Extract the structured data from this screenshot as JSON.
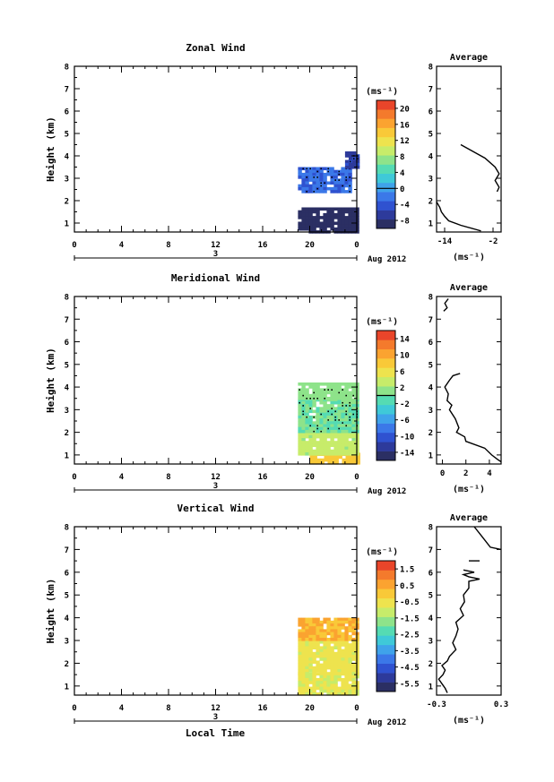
{
  "figure": {
    "date_label": "Aug 2012",
    "xlabel": "Local Time",
    "average_title": "Average",
    "unit_label": "(ms⁻¹)"
  },
  "chart_data": [
    {
      "type": "heatmap",
      "title": "Zonal Wind",
      "ylabel": "Height (km)",
      "xlabel": "Local Time",
      "x_ticks": [
        "0",
        "4",
        "8",
        "12",
        "16",
        "20",
        "0"
      ],
      "xlim": [
        0,
        24
      ],
      "ylim": [
        0.6,
        8
      ],
      "y_ticks": [
        "1",
        "2",
        "3",
        "4",
        "5",
        "6",
        "7",
        "8"
      ],
      "day_label": "3",
      "date_label": "Aug 2012",
      "colorbar": {
        "unit": "(ms⁻¹)",
        "ticks": [
          "20",
          "16",
          "12",
          "8",
          "4",
          "0",
          "-4",
          "-8"
        ],
        "range": [
          -10,
          22
        ]
      },
      "regions": [
        {
          "x": [
            19.0,
            24.0
          ],
          "y": [
            0.65,
            1.7
          ],
          "value": -9
        },
        {
          "x": [
            19.0,
            23.4
          ],
          "y": [
            2.4,
            3.5
          ],
          "value": -3
        },
        {
          "x": [
            23.0,
            24.0
          ],
          "y": [
            3.5,
            4.2
          ],
          "value": -6
        }
      ],
      "profile": {
        "title": "Average",
        "x_ticks": [
          "-14",
          "-2"
        ],
        "xlim": [
          -16,
          0
        ],
        "xlabel": "(ms⁻¹)",
        "segments": [
          {
            "height": [
              4.5,
              4.2,
              3.9,
              3.5,
              3.2,
              2.9,
              2.6,
              2.4
            ],
            "value": [
              -10,
              -7,
              -4,
              -1.5,
              -0.5,
              -1.5,
              -0.5,
              -1
            ]
          },
          {
            "height": [
              1.95,
              1.7,
              1.5,
              1.3,
              1.1,
              0.9,
              0.7,
              0.65
            ],
            "value": [
              -16,
              -15.2,
              -14.8,
              -14,
              -13,
              -10,
              -6,
              -5
            ]
          }
        ]
      }
    },
    {
      "type": "heatmap",
      "title": "Meridional Wind",
      "ylabel": "Height (km)",
      "xlabel": "Local Time",
      "x_ticks": [
        "0",
        "4",
        "8",
        "12",
        "16",
        "20",
        "0"
      ],
      "xlim": [
        0,
        24
      ],
      "ylim": [
        0.6,
        8
      ],
      "y_ticks": [
        "1",
        "2",
        "3",
        "4",
        "5",
        "6",
        "7",
        "8"
      ],
      "day_label": "3",
      "date_label": "Aug 2012",
      "colorbar": {
        "unit": "(ms⁻¹)",
        "ticks": [
          "14",
          "10",
          "6",
          "2",
          "-2",
          "-6",
          "-10",
          "-14"
        ],
        "range": [
          -16,
          16
        ]
      },
      "regions": [
        {
          "x": [
            20.0,
            24.0
          ],
          "y": [
            0.65,
            1.1
          ],
          "value": 8
        },
        {
          "x": [
            19.0,
            24.0
          ],
          "y": [
            1.1,
            2.0
          ],
          "value": 3
        },
        {
          "x": [
            19.0,
            24.0
          ],
          "y": [
            2.0,
            3.5
          ],
          "value": 0
        },
        {
          "x": [
            19.0,
            24.0
          ],
          "y": [
            3.5,
            4.2
          ],
          "value": 1
        }
      ],
      "profile": {
        "title": "Average",
        "x_ticks": [
          "0",
          "2",
          "4"
        ],
        "xlim": [
          -0.5,
          5
        ],
        "xlabel": "(ms⁻¹)",
        "segments": [
          {
            "height": [
              7.9,
              7.7,
              7.5,
              7.35
            ],
            "value": [
              0.5,
              0.2,
              0.4,
              0.1
            ]
          },
          {
            "height": [
              4.6,
              4.5,
              4.3,
              4.0,
              3.7,
              3.4,
              3.2,
              3.0,
              2.6,
              2.2,
              2.0,
              1.8,
              1.6,
              1.3,
              1.0,
              0.8,
              0.7
            ],
            "value": [
              1.5,
              0.9,
              0.6,
              0.2,
              0.5,
              0.4,
              0.8,
              0.6,
              1.1,
              1.4,
              1.2,
              1.9,
              2.0,
              3.6,
              4.2,
              4.7,
              5.0
            ]
          }
        ]
      }
    },
    {
      "type": "heatmap",
      "title": "Vertical Wind",
      "ylabel": "Height (km)",
      "xlabel": "Local Time",
      "x_ticks": [
        "0",
        "4",
        "8",
        "12",
        "16",
        "20",
        "0"
      ],
      "xlim": [
        0,
        24
      ],
      "ylim": [
        0.6,
        8
      ],
      "y_ticks": [
        "1",
        "2",
        "3",
        "4",
        "5",
        "6",
        "7",
        "8"
      ],
      "day_label": "3",
      "date_label": "Aug 2012",
      "colorbar": {
        "unit": "(ms⁻¹)",
        "ticks": [
          "1.5",
          "0.5",
          "-0.5",
          "-1.5",
          "-2.5",
          "-3.5",
          "-4.5",
          "-5.5"
        ],
        "range": [
          -6,
          2
        ]
      },
      "regions": [
        {
          "x": [
            19.0,
            24.0
          ],
          "y": [
            0.65,
            1.6
          ],
          "value": -0.8
        },
        {
          "x": [
            19.0,
            24.0
          ],
          "y": [
            1.6,
            3.0
          ],
          "value": -0.7
        },
        {
          "x": [
            19.0,
            24.0
          ],
          "y": [
            3.0,
            4.0
          ],
          "value": 0.3
        }
      ],
      "profile": {
        "title": "Average",
        "x_ticks": [
          "-0.3",
          "0.3"
        ],
        "xlim": [
          -0.3,
          0.3
        ],
        "xlabel": "(ms⁻¹)",
        "segments": [
          {
            "height": [
              8.0,
              7.7,
              7.4,
              7.1,
              7.0
            ],
            "value": [
              0.05,
              0.1,
              0.15,
              0.2,
              0.3
            ]
          },
          {
            "height": [
              6.5,
              6.5
            ],
            "value": [
              0.0,
              0.1
            ]
          },
          {
            "height": [
              6.1,
              6.0,
              5.9,
              5.8,
              5.7,
              5.6,
              5.3,
              5.0,
              4.7,
              4.4,
              4.1,
              3.8,
              3.5,
              3.2,
              2.9,
              2.6,
              2.3,
              2.1,
              1.9,
              1.7,
              1.5,
              1.3,
              1.1,
              0.9,
              0.7
            ],
            "value": [
              -0.05,
              0.05,
              -0.05,
              0.0,
              0.1,
              0.0,
              0.0,
              -0.05,
              -0.04,
              -0.08,
              -0.05,
              -0.12,
              -0.1,
              -0.12,
              -0.15,
              -0.12,
              -0.18,
              -0.2,
              -0.25,
              -0.22,
              -0.24,
              -0.28,
              -0.25,
              -0.22,
              -0.2
            ]
          }
        ]
      }
    }
  ]
}
